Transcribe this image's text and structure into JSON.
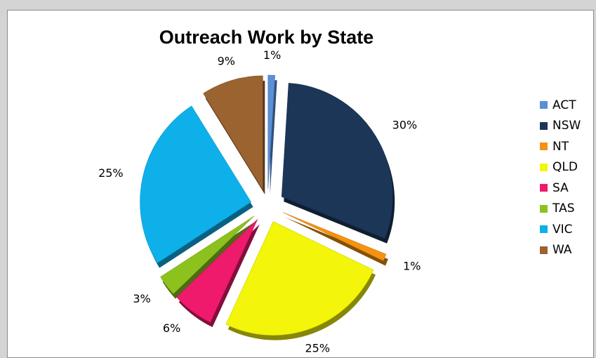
{
  "chart_data": {
    "type": "pie",
    "title": "Outreach Work by State",
    "categories": [
      "ACT",
      "NSW",
      "NT",
      "QLD",
      "SA",
      "TAS",
      "VIC",
      "WA"
    ],
    "values": [
      1,
      30,
      1,
      25,
      6,
      3,
      25,
      9
    ],
    "labels": [
      "1%",
      "30%",
      "1%",
      "25%",
      "6%",
      "3%",
      "25%",
      "9%"
    ],
    "colors": [
      "#5b8fd6",
      "#1c3658",
      "#f5920f",
      "#f3f50a",
      "#ef1a6c",
      "#8dc21e",
      "#0eb0ea",
      "#9a6330"
    ],
    "legend_position": "right",
    "exploded": true
  }
}
